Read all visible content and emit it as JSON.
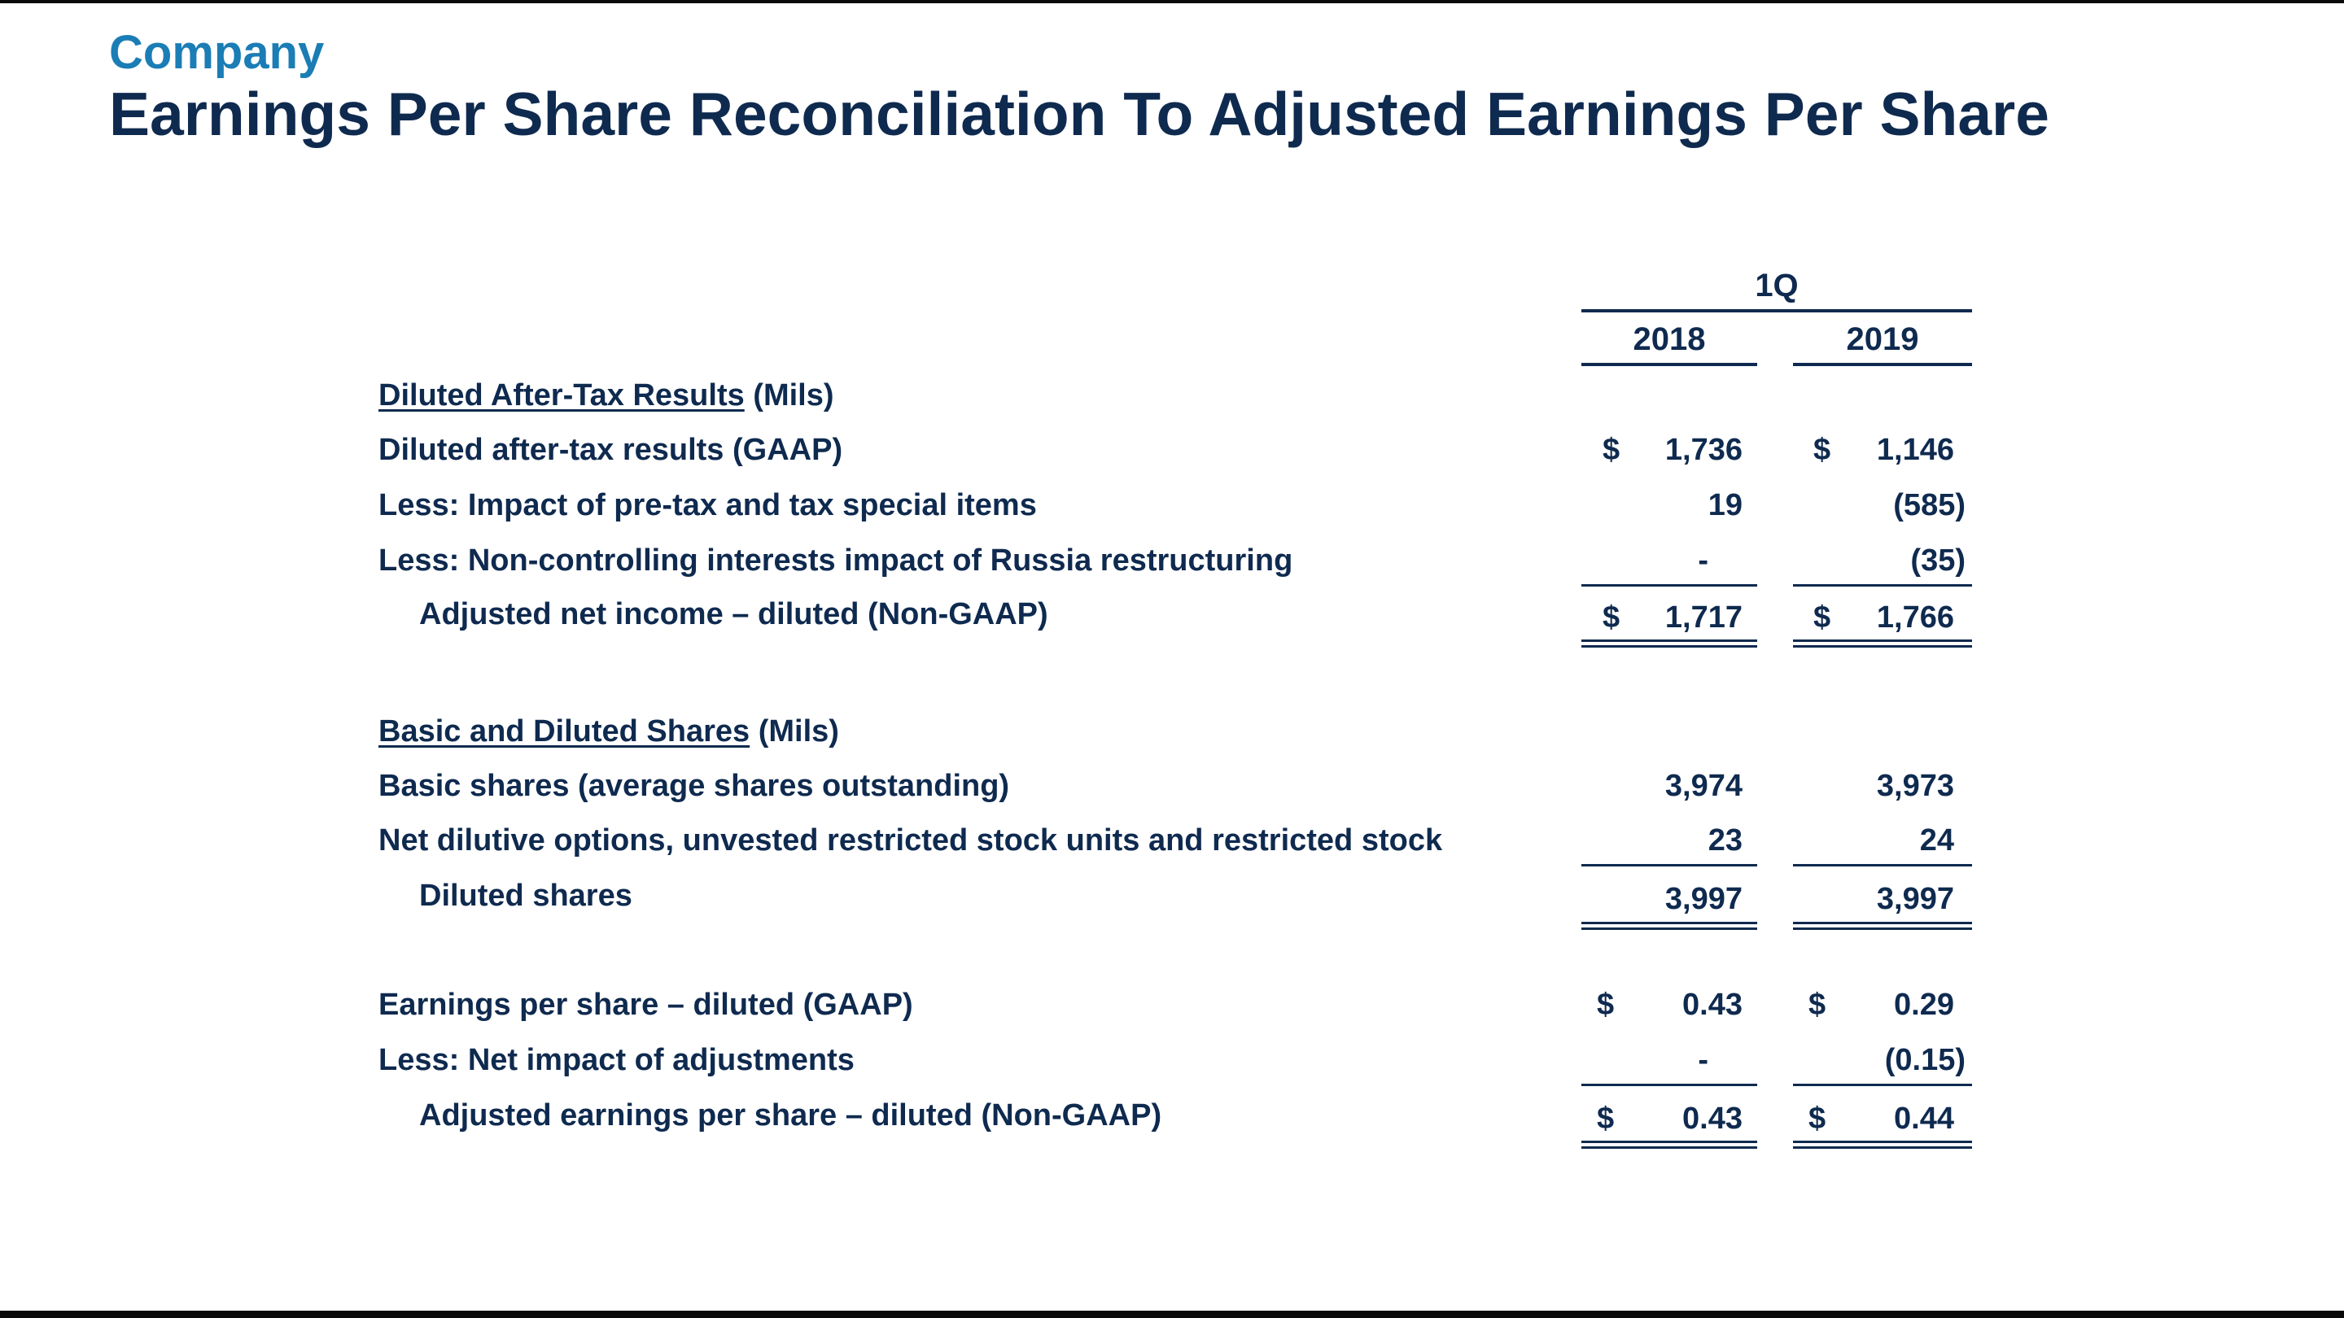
{
  "header": {
    "company": "Company",
    "title": "Earnings Per Share Reconciliation To Adjusted Earnings Per Share"
  },
  "table": {
    "period": "1Q",
    "columns": [
      "2018",
      "2019"
    ],
    "sections": {
      "after_tax": {
        "heading": "Diluted After-Tax Results",
        "unit": " (Mils)",
        "rows": [
          {
            "label": "Diluted after-tax results (GAAP)",
            "v2018": "1,736",
            "v2019": "1,146",
            "cur": "$"
          },
          {
            "label": "Less:  Impact of pre-tax and tax special items",
            "v2018": "19",
            "v2019": "(585)"
          },
          {
            "label": "Less:  Non-controlling interests impact of Russia restructuring",
            "v2018": "-",
            "v2019": "(35)"
          },
          {
            "label": "Adjusted net income – diluted (Non-GAAP)",
            "v2018": "1,717",
            "v2019": "1,766",
            "cur": "$"
          }
        ]
      },
      "shares": {
        "heading": "Basic and Diluted Shares",
        "unit": " (Mils)",
        "rows": [
          {
            "label": "Basic shares (average shares outstanding)",
            "v2018": "3,974",
            "v2019": "3,973"
          },
          {
            "label": "Net dilutive options, unvested restricted stock units and restricted stock",
            "v2018": "23",
            "v2019": "24"
          },
          {
            "label": "Diluted shares",
            "v2018": "3,997",
            "v2019": "3,997"
          }
        ]
      },
      "eps": {
        "rows": [
          {
            "label": "Earnings per share – diluted (GAAP)",
            "v2018": "0.43",
            "v2019": "0.29",
            "cur": "$"
          },
          {
            "label": "Less:  Net impact of adjustments",
            "v2018": "-",
            "v2019": "(0.15)"
          },
          {
            "label": "Adjusted earnings per share – diluted (Non-GAAP)",
            "v2018": "0.43",
            "v2019": "0.44",
            "cur": "$"
          }
        ]
      }
    }
  }
}
